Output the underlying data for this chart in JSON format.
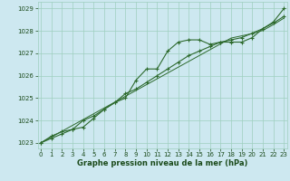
{
  "xlabel": "Graphe pression niveau de la mer (hPa)",
  "x": [
    0,
    1,
    2,
    3,
    4,
    5,
    6,
    7,
    8,
    9,
    10,
    11,
    12,
    13,
    14,
    15,
    16,
    17,
    18,
    19,
    20,
    21,
    22,
    23
  ],
  "line1": [
    1023.0,
    1023.3,
    1023.5,
    1023.6,
    1023.7,
    1024.1,
    1024.5,
    1024.8,
    1025.0,
    1025.8,
    1026.3,
    1026.3,
    1027.1,
    1027.5,
    1027.6,
    1027.6,
    1027.4,
    1027.5,
    1027.5,
    1027.5,
    1027.7,
    1028.1,
    1028.4,
    1029.0
  ],
  "line2": [
    1023.0,
    1023.2,
    1023.4,
    1023.6,
    1024.0,
    1024.2,
    1024.5,
    1024.8,
    1025.2,
    1025.4,
    1025.7,
    1026.0,
    1026.3,
    1026.6,
    1026.9,
    1027.1,
    1027.3,
    1027.5,
    1027.6,
    1027.7,
    1027.9,
    1028.1,
    1028.35,
    1028.65
  ],
  "line3": [
    1023.0,
    1023.26,
    1023.52,
    1023.78,
    1024.04,
    1024.3,
    1024.56,
    1024.82,
    1025.08,
    1025.34,
    1025.6,
    1025.86,
    1026.12,
    1026.38,
    1026.64,
    1026.9,
    1027.16,
    1027.42,
    1027.68,
    1027.78,
    1027.88,
    1028.02,
    1028.28,
    1028.57
  ],
  "line_color": "#2d6a2d",
  "bg_color": "#cde8f0",
  "grid_color": "#9ecfbf",
  "text_color": "#1a4a1a",
  "ylim": [
    1022.75,
    1029.3
  ],
  "yticks": [
    1023,
    1024,
    1025,
    1026,
    1027,
    1028,
    1029
  ],
  "xticks": [
    0,
    1,
    2,
    3,
    4,
    5,
    6,
    7,
    8,
    9,
    10,
    11,
    12,
    13,
    14,
    15,
    16,
    17,
    18,
    19,
    20,
    21,
    22,
    23
  ]
}
